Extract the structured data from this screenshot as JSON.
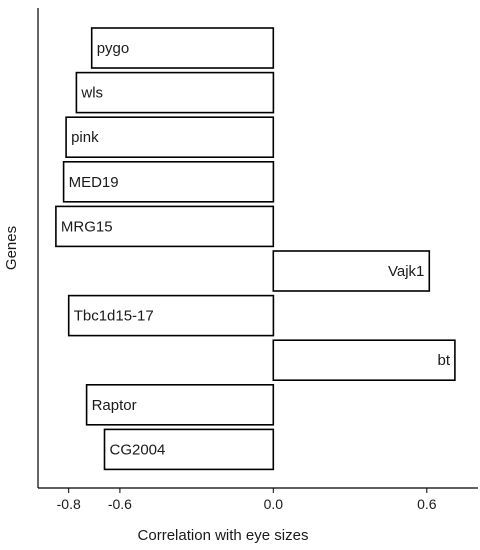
{
  "chart_data": {
    "type": "bar",
    "orientation": "horizontal",
    "categories": [
      "pygo",
      "wls",
      "pink",
      "MED19",
      "MRG15",
      "Vajk1",
      "Tbc1d15-17",
      "bt",
      "Raptor",
      "CG2004"
    ],
    "values": [
      -0.71,
      -0.77,
      -0.81,
      -0.82,
      -0.85,
      0.61,
      -0.8,
      0.71,
      -0.73,
      -0.66
    ],
    "xlabel": "Correlation with eye sizes",
    "ylabel": "Genes",
    "xlim": [
      -0.92,
      0.8
    ],
    "xticks": [
      -0.8,
      -0.6,
      0.0,
      0.6
    ],
    "xtick_labels": [
      "-0.8",
      "-0.6",
      "0.0",
      "0.6"
    ],
    "bar_fill": "#ffffff",
    "bar_stroke": "#000000",
    "grid": false,
    "legend": "none"
  }
}
